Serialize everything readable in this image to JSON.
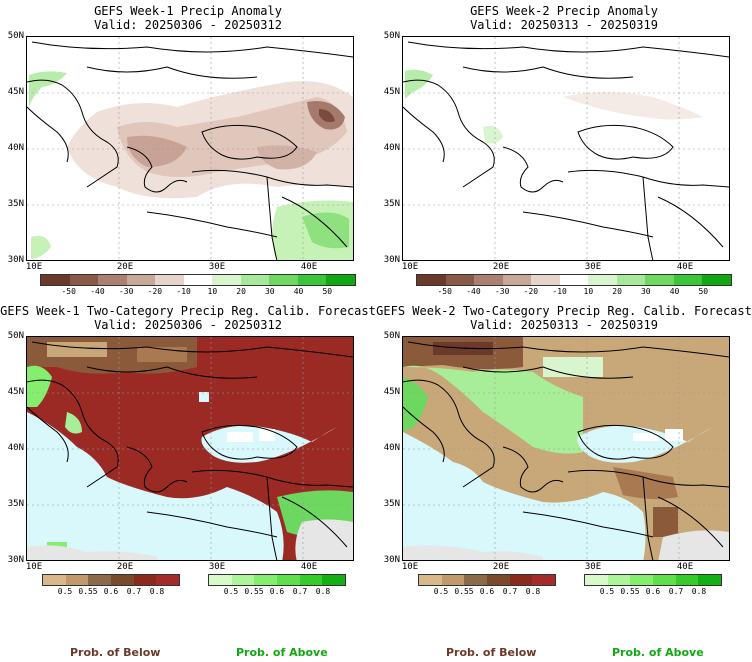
{
  "panels": [
    {
      "title_line1": "GEFS Week-1 Precip Anomaly",
      "title_line2": "Valid: 20250306 - 20250312"
    },
    {
      "title_line1": "GEFS Week-2 Precip Anomaly",
      "title_line2": "Valid: 20250313 - 20250319"
    },
    {
      "title_line1": "GEFS Week-1 Two-Category Precip Reg. Calib. Forecast",
      "title_line2": "Valid: 20250306 - 20250312"
    },
    {
      "title_line1": "GEFS Week-2 Two-Category Precip Reg. Calib. Forecast",
      "title_line2": "Valid: 20250313 - 20250319"
    }
  ],
  "axes": {
    "lat_labels": [
      "50N",
      "45N",
      "40N",
      "35N",
      "30N"
    ],
    "lon_labels": [
      "10E",
      "20E",
      "30E",
      "40E"
    ]
  },
  "anomaly_colorbar": {
    "labels": [
      "-50",
      "-40",
      "-30",
      "-20",
      "-10",
      "10",
      "20",
      "30",
      "40",
      "50"
    ],
    "colors": [
      "#6b3a2a",
      "#8a5a48",
      "#a98072",
      "#c8a89a",
      "#e6d3cb",
      "#ffffff",
      "#d9f5d0",
      "#a8e89a",
      "#6fd863",
      "#3cc43a",
      "#12a812"
    ]
  },
  "prob_colorbar_below": {
    "labels": [
      "0.5",
      "0.55",
      "0.6",
      "0.7",
      "0.8"
    ],
    "colors": [
      "#d9b98a",
      "#c09a6a",
      "#8b6a4a",
      "#7a4a2a",
      "#8b2a1a",
      "#a52a2a"
    ]
  },
  "prob_colorbar_above": {
    "labels": [
      "0.5",
      "0.55",
      "0.6",
      "0.7",
      "0.8"
    ],
    "colors": [
      "#d6fbc8",
      "#aef59a",
      "#86ee6e",
      "#5fe04a",
      "#35cc2a",
      "#12b012"
    ]
  },
  "legend": {
    "below_label": "Prob. of Below",
    "above_label": "Prob. of Above",
    "below_color": "#6b3a2a",
    "above_color": "#12a812"
  },
  "colors": {
    "sea": "#d8f8fc",
    "land_gray": "#e6e6e6",
    "below_strong": "#9b2a24",
    "below_mid": "#8b5a3a",
    "below_light": "#c8a878",
    "above_light": "#a8ee98",
    "above_mid": "#6cd860"
  }
}
